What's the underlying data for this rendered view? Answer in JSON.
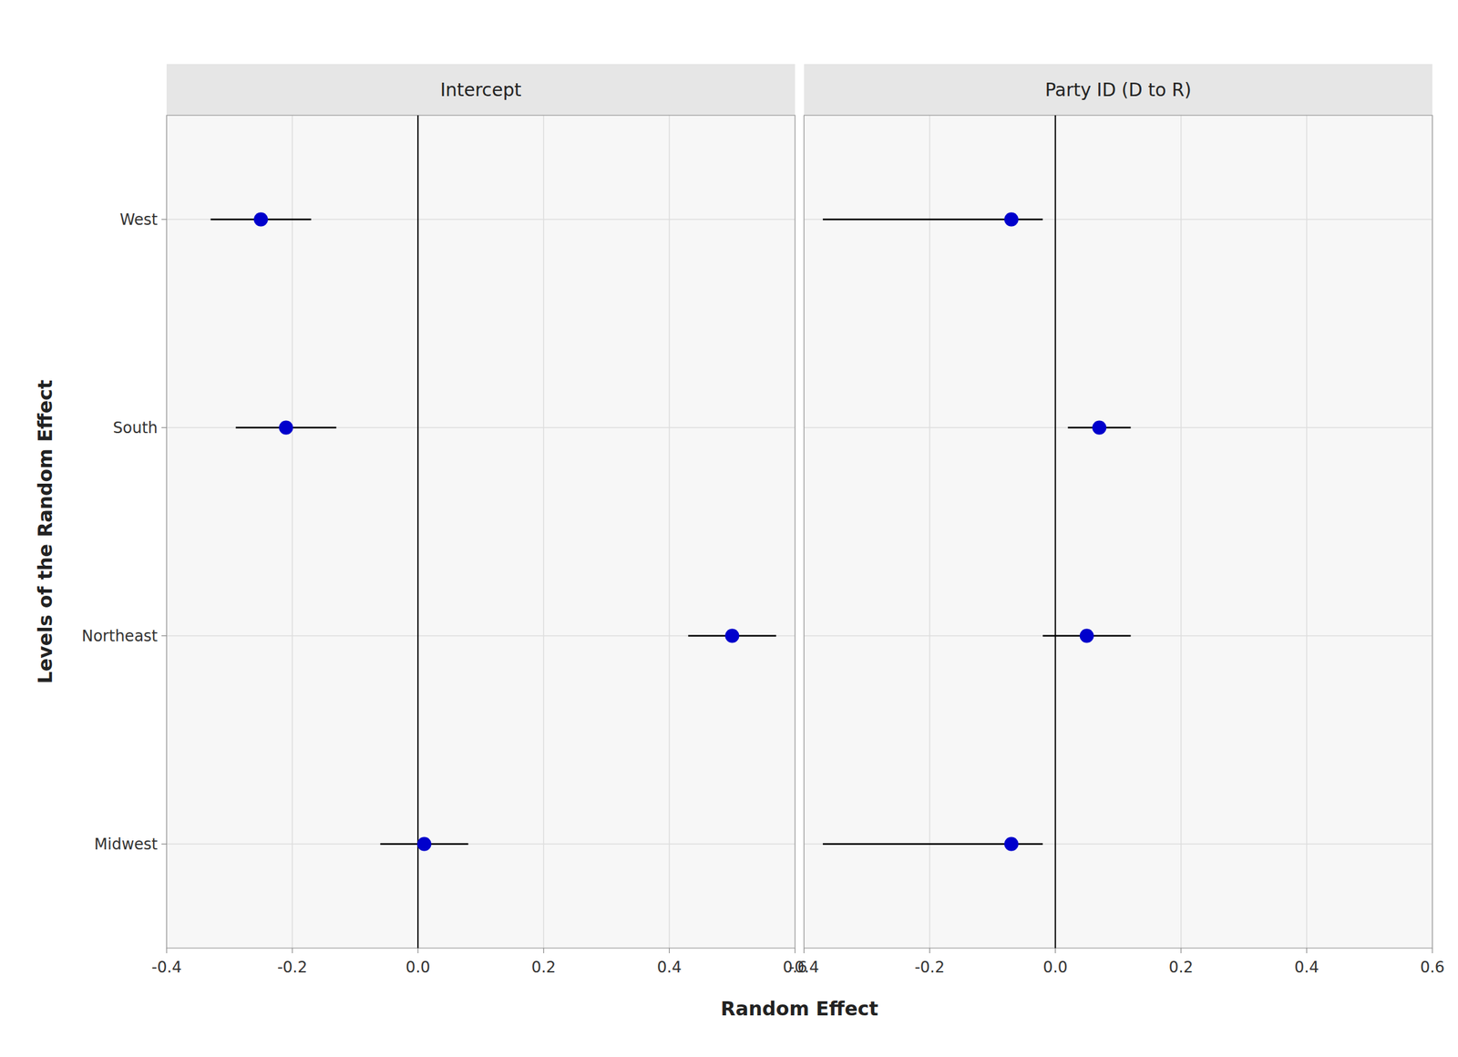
{
  "chart_data": {
    "type": "dot",
    "orientation": "horizontal",
    "xlabel": "Random Effect",
    "ylabel": "Levels of the Random Effect",
    "categories": [
      "West",
      "South",
      "Northeast",
      "Midwest"
    ],
    "series": [
      {
        "name": "Intercept",
        "color": "#0000CC",
        "values": [
          -0.25,
          -0.21,
          0.5,
          0.01
        ],
        "ci_lower": [
          -0.33,
          -0.29,
          0.43,
          -0.06
        ],
        "ci_upper": [
          -0.17,
          -0.13,
          0.57,
          0.08
        ]
      },
      {
        "name": "Party ID (D to R)",
        "color": "#0000CC",
        "values": [
          -0.07,
          0.07,
          0.05,
          -0.07
        ],
        "ci_lower": [
          -0.37,
          0.02,
          -0.02,
          -0.37
        ],
        "ci_upper": [
          -0.02,
          0.12,
          0.12,
          -0.02
        ]
      }
    ],
    "reference_line": 0,
    "xlim": [
      -0.4,
      0.6
    ],
    "xticks": [
      -0.4,
      -0.2,
      {
        "value": 0,
        "label": "0.0"
      },
      0.2,
      0.4,
      0.6
    ],
    "grid": true
  }
}
